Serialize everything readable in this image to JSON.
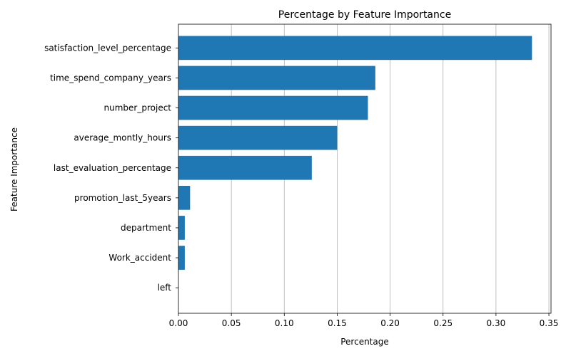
{
  "chart_data": {
    "type": "bar",
    "orientation": "horizontal",
    "title": "Percentage by Feature Importance",
    "xlabel": "Percentage",
    "ylabel": "Feature Importance",
    "xlim": [
      0,
      0.352
    ],
    "x_ticks": [
      0.0,
      0.05,
      0.1,
      0.15,
      0.2,
      0.25,
      0.3,
      0.35
    ],
    "x_tick_labels": [
      "0.00",
      "0.05",
      "0.10",
      "0.15",
      "0.20",
      "0.25",
      "0.30",
      "0.35"
    ],
    "grid": "vertical",
    "bar_color": "#1f77b4",
    "categories": [
      "satisfaction_level_percentage",
      "time_spend_company_years",
      "number_project",
      "average_montly_hours",
      "last_evaluation_percentage",
      "promotion_last_5years",
      "department",
      "Work_accident",
      "left"
    ],
    "values": [
      0.334,
      0.186,
      0.179,
      0.15,
      0.126,
      0.011,
      0.006,
      0.006,
      0.0
    ]
  }
}
